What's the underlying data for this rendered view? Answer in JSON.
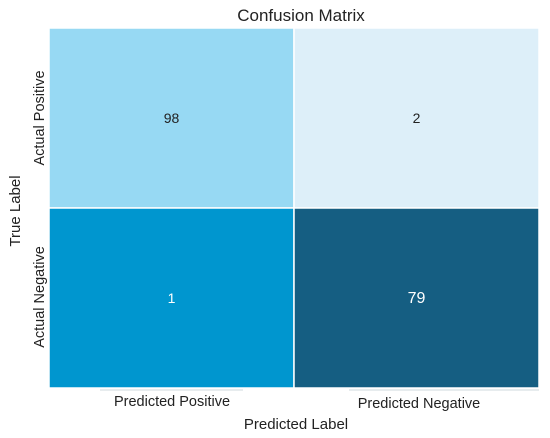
{
  "chart_data": {
    "type": "heatmap",
    "title": "Confusion Matrix",
    "xlabel": "Predicted Label",
    "ylabel": "True Label",
    "x_categories": [
      "Predicted Positive",
      "Predicted Negative"
    ],
    "y_categories": [
      "Actual Positive",
      "Actual Negative"
    ],
    "values": [
      [
        98,
        2
      ],
      [
        1,
        79
      ]
    ],
    "cell_colors": [
      [
        "#97D9F3",
        "#DDEFF9"
      ],
      [
        "#0096CF",
        "#155E82"
      ]
    ],
    "label_colors": [
      [
        "#222222",
        "#222222"
      ],
      [
        "#ffffff",
        "#ffffff"
      ]
    ],
    "grid": true,
    "legend": "none"
  }
}
